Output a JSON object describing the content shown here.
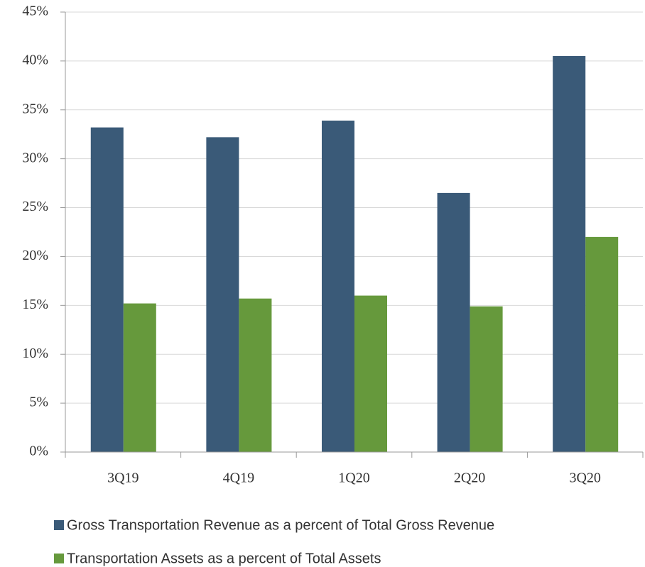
{
  "chart_data": {
    "type": "bar",
    "categories": [
      "3Q19",
      "4Q19",
      "1Q20",
      "2Q20",
      "3Q20"
    ],
    "series": [
      {
        "name": "Gross Transportation Revenue as a percent of Total Gross Revenue",
        "color": "#3a5a78",
        "values": [
          33.2,
          32.2,
          33.9,
          26.5,
          40.5
        ]
      },
      {
        "name": "Transportation Assets as a percent of Total Assets",
        "color": "#66993c",
        "values": [
          15.2,
          15.7,
          16.0,
          14.9,
          22.0
        ]
      }
    ],
    "ylim": [
      0,
      45
    ],
    "yticks": [
      {
        "value": 0,
        "label": "0%"
      },
      {
        "value": 5,
        "label": "5%"
      },
      {
        "value": 10,
        "label": "10%"
      },
      {
        "value": 15,
        "label": "15%"
      },
      {
        "value": 20,
        "label": "20%"
      },
      {
        "value": 25,
        "label": "25%"
      },
      {
        "value": 30,
        "label": "30%"
      },
      {
        "value": 35,
        "label": "35%"
      },
      {
        "value": 40,
        "label": "40%"
      },
      {
        "value": 45,
        "label": "45%"
      }
    ],
    "grid": true,
    "legend": "bottom"
  }
}
